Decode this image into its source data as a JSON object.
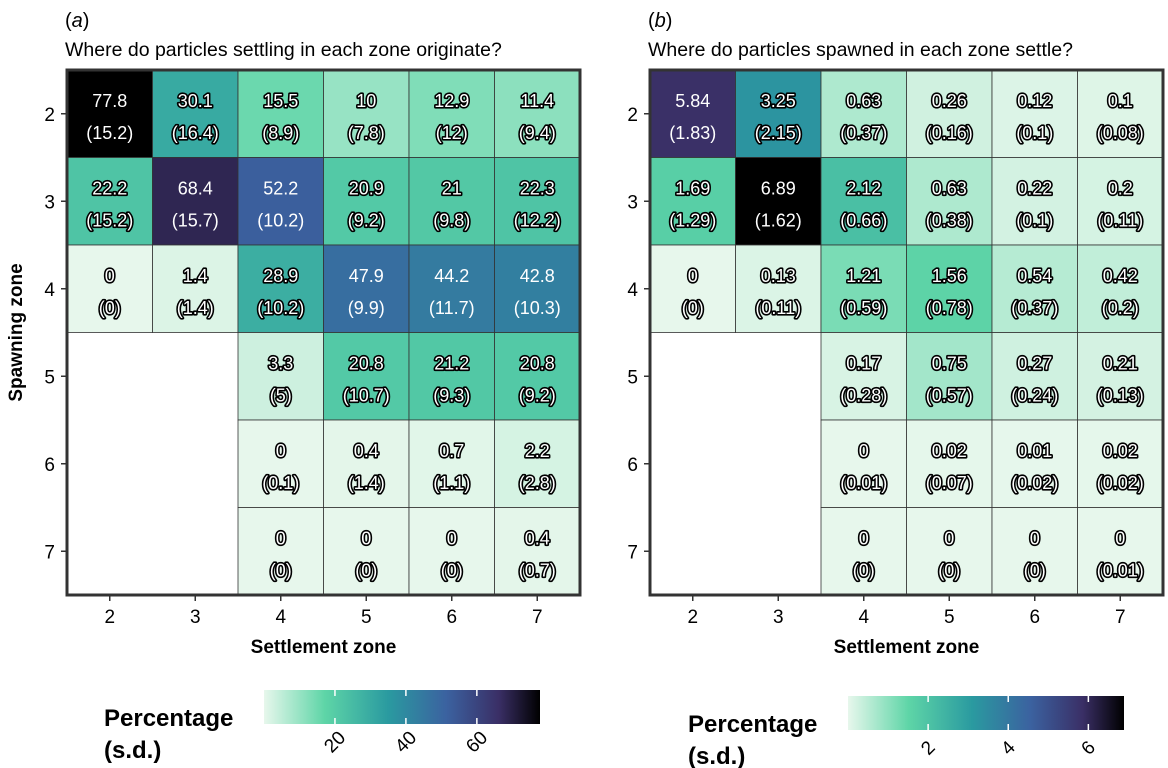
{
  "chart_data": [
    {
      "type": "heatmap",
      "panel_label": "(a)",
      "title": "Where do particles settling in each zone originate?",
      "xlabel": "Settlement zone",
      "ylabel": "Spawning zone",
      "x_categories": [
        "2",
        "3",
        "4",
        "5",
        "6",
        "7"
      ],
      "y_categories": [
        "2",
        "3",
        "4",
        "5",
        "6",
        "7"
      ],
      "values": [
        [
          77.8,
          30.1,
          15.5,
          10,
          12.9,
          11.4
        ],
        [
          22.2,
          68.4,
          52.2,
          20.9,
          21,
          22.3
        ],
        [
          0,
          1.4,
          28.9,
          47.9,
          44.2,
          42.8
        ],
        [
          null,
          null,
          3.3,
          20.8,
          21.2,
          20.8
        ],
        [
          null,
          null,
          0,
          0.4,
          0.7,
          2.2
        ],
        [
          null,
          null,
          0,
          0,
          0,
          0.4
        ]
      ],
      "sd": [
        [
          15.2,
          16.4,
          8.9,
          7.8,
          12,
          9.4
        ],
        [
          15.2,
          15.7,
          10.2,
          9.2,
          9.8,
          12.2
        ],
        [
          0,
          1.4,
          10.2,
          9.9,
          11.7,
          10.3
        ],
        [
          null,
          null,
          5,
          10.7,
          9.3,
          9.2
        ],
        [
          null,
          null,
          0.1,
          1.4,
          1.1,
          2.8
        ],
        [
          null,
          null,
          0,
          0,
          0,
          0.7
        ]
      ],
      "color_range": [
        0,
        77.8
      ],
      "legend": {
        "title_line1": "Percentage",
        "title_line2": "(s.d.)",
        "ticks": [
          20,
          40,
          60
        ],
        "placement": "bottom"
      },
      "grid": false
    },
    {
      "type": "heatmap",
      "panel_label": "(b)",
      "title": "Where do particles spawned in each zone settle?",
      "xlabel": "Settlement zone",
      "ylabel": "",
      "x_categories": [
        "2",
        "3",
        "4",
        "5",
        "6",
        "7"
      ],
      "y_categories": [
        "2",
        "3",
        "4",
        "5",
        "6",
        "7"
      ],
      "values": [
        [
          5.84,
          3.25,
          0.63,
          0.26,
          0.12,
          0.1
        ],
        [
          1.69,
          6.89,
          2.12,
          0.63,
          0.22,
          0.2
        ],
        [
          0,
          0.13,
          1.21,
          1.56,
          0.54,
          0.42
        ],
        [
          null,
          null,
          0.17,
          0.75,
          0.27,
          0.21
        ],
        [
          null,
          null,
          0,
          0.02,
          0.01,
          0.02
        ],
        [
          null,
          null,
          0,
          0,
          0,
          0
        ]
      ],
      "sd": [
        [
          1.83,
          2.15,
          0.37,
          0.16,
          0.1,
          0.08
        ],
        [
          1.29,
          1.62,
          0.66,
          0.38,
          0.1,
          0.11
        ],
        [
          0,
          0.11,
          0.59,
          0.78,
          0.37,
          0.2
        ],
        [
          null,
          null,
          0.28,
          0.57,
          0.24,
          0.13
        ],
        [
          null,
          null,
          0.01,
          0.07,
          0.02,
          0.02
        ],
        [
          null,
          null,
          0,
          0,
          0,
          0.01
        ]
      ],
      "color_range": [
        0,
        6.89
      ],
      "legend": {
        "title_line1": "Percentage",
        "title_line2": "(s.d.)",
        "ticks": [
          2,
          4,
          6
        ],
        "placement": "bottom"
      },
      "grid": false
    }
  ],
  "colors": {
    "scale": [
      "#e7f7ec",
      "#5ed5a7",
      "#2a9aa0",
      "#3b62a0",
      "#3a2f66",
      "#000000"
    ],
    "frame": "#333333",
    "cell_border": "#333333"
  }
}
